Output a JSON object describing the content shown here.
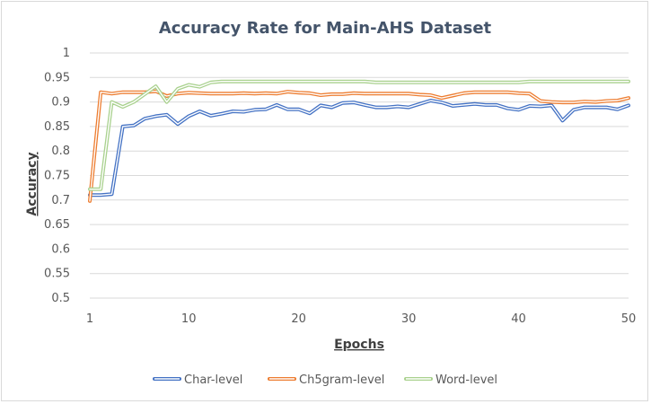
{
  "chart_data": {
    "type": "line",
    "title": "Accuracy Rate for Main-AHS Dataset",
    "xlabel": "Epochs",
    "ylabel": "Accuracy",
    "xlim": [
      1,
      50
    ],
    "ylim": [
      0.5,
      1
    ],
    "x_ticks": [
      1,
      10,
      20,
      30,
      40,
      50
    ],
    "y_ticks": [
      0.5,
      0.55,
      0.6,
      0.65,
      0.7,
      0.75,
      0.8,
      0.85,
      0.9,
      0.95,
      1
    ],
    "y_tick_labels": [
      "0.5",
      "0.55",
      "0.6",
      "0.65",
      "0.7",
      "0.75",
      "0.8",
      "0.85",
      "0.9",
      "0.95",
      "1"
    ],
    "x_tick_labels": [
      "1",
      "10",
      "20",
      "30",
      "40",
      "50"
    ],
    "grid": "horizontal",
    "legend_position": "bottom",
    "x": [
      1,
      2,
      3,
      4,
      5,
      6,
      7,
      8,
      9,
      10,
      11,
      12,
      13,
      14,
      15,
      16,
      17,
      18,
      19,
      20,
      21,
      22,
      23,
      24,
      25,
      26,
      27,
      28,
      29,
      30,
      31,
      32,
      33,
      34,
      35,
      36,
      37,
      38,
      39,
      40,
      41,
      42,
      43,
      44,
      45,
      46,
      47,
      48,
      49,
      50
    ],
    "series": [
      {
        "name": "Char-level",
        "color": "#4472c4",
        "values": [
          0.71,
          0.71,
          0.712,
          0.85,
          0.852,
          0.866,
          0.871,
          0.874,
          0.855,
          0.871,
          0.881,
          0.872,
          0.876,
          0.881,
          0.88,
          0.884,
          0.885,
          0.894,
          0.885,
          0.885,
          0.877,
          0.893,
          0.889,
          0.898,
          0.899,
          0.894,
          0.889,
          0.889,
          0.891,
          0.889,
          0.896,
          0.903,
          0.899,
          0.892,
          0.894,
          0.896,
          0.894,
          0.894,
          0.887,
          0.884,
          0.892,
          0.891,
          0.893,
          0.862,
          0.884,
          0.889,
          0.889,
          0.889,
          0.885,
          0.893
        ]
      },
      {
        "name": "Ch5gram-level",
        "color": "#ed7d31",
        "values": [
          0.698,
          0.92,
          0.917,
          0.92,
          0.92,
          0.92,
          0.922,
          0.912,
          0.917,
          0.919,
          0.918,
          0.917,
          0.917,
          0.917,
          0.918,
          0.917,
          0.918,
          0.917,
          0.921,
          0.919,
          0.918,
          0.914,
          0.916,
          0.916,
          0.918,
          0.917,
          0.917,
          0.917,
          0.917,
          0.917,
          0.915,
          0.914,
          0.908,
          0.913,
          0.918,
          0.92,
          0.92,
          0.92,
          0.92,
          0.918,
          0.917,
          0.902,
          0.9,
          0.899,
          0.899,
          0.901,
          0.9,
          0.902,
          0.903,
          0.908
        ]
      },
      {
        "name": "Word-level",
        "color": "#a9d18e",
        "values": [
          0.722,
          0.722,
          0.9,
          0.89,
          0.9,
          0.916,
          0.932,
          0.9,
          0.927,
          0.935,
          0.931,
          0.94,
          0.942,
          0.942,
          0.942,
          0.942,
          0.942,
          0.942,
          0.942,
          0.942,
          0.942,
          0.942,
          0.942,
          0.942,
          0.942,
          0.942,
          0.94,
          0.94,
          0.94,
          0.94,
          0.94,
          0.94,
          0.94,
          0.94,
          0.94,
          0.94,
          0.94,
          0.94,
          0.94,
          0.94,
          0.942,
          0.942,
          0.942,
          0.942,
          0.942,
          0.942,
          0.942,
          0.942,
          0.942,
          0.942
        ]
      }
    ]
  }
}
